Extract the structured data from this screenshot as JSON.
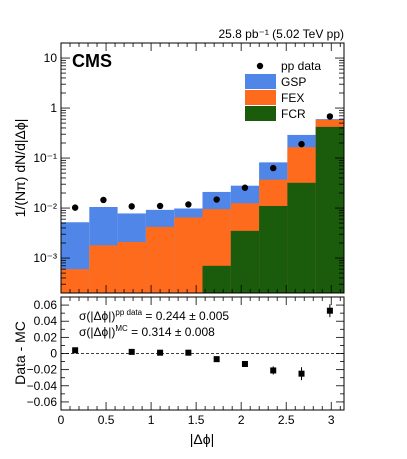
{
  "header": {
    "lumi_label": "25.8 pb⁻¹ (5.02 TeV pp)"
  },
  "experiment_label": "CMS",
  "colors": {
    "GSP": "#4f86e8",
    "FEX": "#ff6b1c",
    "FCR": "#1a5c0c",
    "data": "#000000"
  },
  "chart_data": [
    {
      "type": "bar",
      "subtype": "stacked_histogram_with_data_points",
      "ylabel": "1/(Nπ) dN/d|Δϕ|",
      "yscale": "log",
      "ylim": [
        0.0002,
        20
      ],
      "xlim": [
        0,
        3.14159
      ],
      "y_tick_labels": [
        "10⁻³",
        "10⁻²",
        "10⁻¹",
        "1",
        "10"
      ],
      "bin_edges": [
        0,
        0.31416,
        0.62832,
        0.94248,
        1.25664,
        1.5708,
        1.88496,
        2.19911,
        2.51327,
        2.82743,
        3.14159
      ],
      "series": [
        {
          "name": "FCR",
          "values": [
            0,
            0,
            0,
            0,
            0,
            0.0007,
            0.0035,
            0.011,
            0.032,
            0.42
          ]
        },
        {
          "name": "FEX",
          "values": [
            0.0006,
            0.0018,
            0.0021,
            0.0042,
            0.0065,
            0.0095,
            0.0125,
            0.037,
            0.165,
            0.58
          ]
        },
        {
          "name": "GSP",
          "values": [
            0.0052,
            0.0105,
            0.0078,
            0.0092,
            0.0098,
            0.021,
            0.028,
            0.082,
            0.29,
            0.6
          ]
        }
      ],
      "data_points": {
        "name": "pp data",
        "x": [
          0.157,
          0.471,
          0.785,
          1.1,
          1.414,
          1.728,
          2.042,
          2.356,
          2.67,
          2.985
        ],
        "y": [
          0.0102,
          0.0145,
          0.0108,
          0.011,
          0.0118,
          0.0148,
          0.0255,
          0.063,
          0.19,
          0.68
        ]
      },
      "legend": [
        "pp data",
        "GSP",
        "FEX",
        "FCR"
      ],
      "legend_position": "top-right"
    },
    {
      "type": "scatter",
      "xlabel": "|Δϕ|",
      "ylabel": "Data - MC",
      "xlim": [
        0,
        3.14159
      ],
      "ylim": [
        -0.07,
        0.07
      ],
      "x_tick_labels": [
        "0",
        "0.5",
        "1",
        "1.5",
        "2",
        "2.5",
        "3"
      ],
      "y_tick_labels": [
        "−0.06",
        "−0.04",
        "−0.02",
        "0",
        "0.02",
        "0.04",
        "0.06"
      ],
      "points": {
        "x": [
          0.157,
          0.785,
          1.1,
          1.414,
          1.728,
          2.042,
          2.356,
          2.67,
          2.985
        ],
        "y": [
          0.004,
          0.002,
          0.001,
          0.001,
          -0.007,
          -0.013,
          -0.021,
          -0.025,
          0.053
        ],
        "yerr": [
          0.002,
          0.002,
          0.002,
          0.002,
          0.002,
          0.002,
          0.005,
          0.008,
          0.008
        ]
      },
      "reference_line": 0,
      "annotations": [
        {
          "sym": "σ(|Δϕ|)",
          "sup": "pp data",
          "val": " = 0.244 ± 0.005"
        },
        {
          "sym": "σ(|Δϕ|)",
          "sup": "MC",
          "val": " = 0.314 ± 0.008"
        }
      ]
    }
  ]
}
